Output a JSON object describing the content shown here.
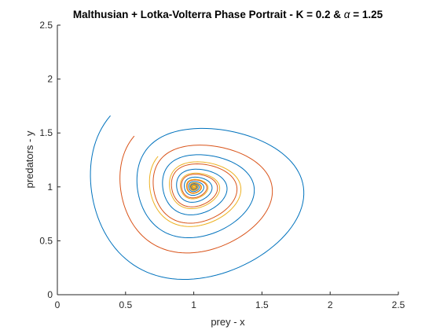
{
  "chart_data": {
    "type": "line",
    "title_parts": {
      "before": "Malthusian + Lotka-Volterra Phase Portrait - K = 0.2 & ",
      "symbol": "α",
      "after": " = 1.25"
    },
    "xlabel": "prey - x",
    "ylabel": "predators - y",
    "xlim": [
      0,
      2.5
    ],
    "ylim": [
      0,
      2.5
    ],
    "xticks": [
      "0",
      "0.5",
      "1",
      "1.5",
      "2",
      "2.5"
    ],
    "yticks": [
      "0",
      "0.5",
      "1",
      "1.5",
      "2",
      "2.5"
    ],
    "grid": false,
    "legend": "none",
    "equilibrium": [
      1.0,
      1.0
    ],
    "series": [
      {
        "color": "#0072BD",
        "start": [
          0.3,
          1.7
        ],
        "end_radius": 0.2,
        "radius_decay_per_turn": 0.55
      },
      {
        "color": "#D95319",
        "start": [
          0.5,
          1.5
        ],
        "end_radius": 0.2,
        "radius_decay_per_turn": 0.55
      },
      {
        "color": "#EDB120",
        "start": [
          0.7,
          1.3
        ],
        "end_radius": 0.2,
        "radius_decay_per_turn": 0.55
      }
    ]
  }
}
